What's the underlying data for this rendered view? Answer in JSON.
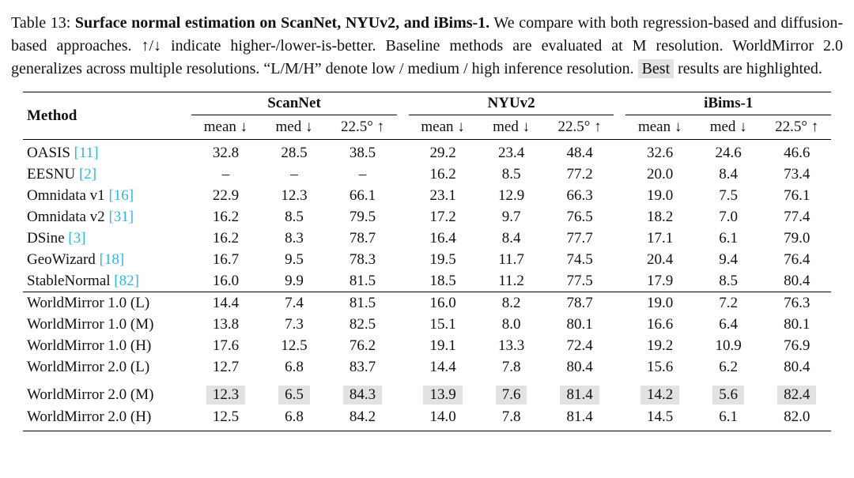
{
  "caption": {
    "prefix": "Table 13: ",
    "title_bold": "Surface normal estimation on ScanNet, NYUv2, and iBims-1.",
    "body": " We compare with both regression-based and diffusion-based approaches. ↑/↓ indicate higher-/lower-is-better. Baseline methods are evaluated at M resolution. WorldMirror 2.0 generalizes across multiple resolutions. “L/M/H” denote low / medium / high inference resolution. ",
    "highlight_word": "Best",
    "suffix": " results are highlighted."
  },
  "table": {
    "method_header": "Method",
    "groups": [
      "ScanNet",
      "NYUv2",
      "iBims-1"
    ],
    "subheaders": [
      "mean ↓",
      "med ↓",
      "22.5° ↑"
    ],
    "colors": {
      "citation": "#31b5e6",
      "highlight_bg": "#e2e2e2"
    },
    "rows": [
      {
        "method": "OASIS",
        "cite": "[11]",
        "values": [
          "32.8",
          "28.5",
          "38.5",
          "29.2",
          "23.4",
          "48.4",
          "32.6",
          "24.6",
          "46.6"
        ]
      },
      {
        "method": "EESNU",
        "cite": "[2]",
        "values": [
          "–",
          "–",
          "–",
          "16.2",
          "8.5",
          "77.2",
          "20.0",
          "8.4",
          "73.4"
        ]
      },
      {
        "method": "Omnidata v1",
        "cite": "[16]",
        "values": [
          "22.9",
          "12.3",
          "66.1",
          "23.1",
          "12.9",
          "66.3",
          "19.0",
          "7.5",
          "76.1"
        ]
      },
      {
        "method": "Omnidata v2",
        "cite": "[31]",
        "values": [
          "16.2",
          "8.5",
          "79.5",
          "17.2",
          "9.7",
          "76.5",
          "18.2",
          "7.0",
          "77.4"
        ]
      },
      {
        "method": "DSine",
        "cite": "[3]",
        "values": [
          "16.2",
          "8.3",
          "78.7",
          "16.4",
          "8.4",
          "77.7",
          "17.1",
          "6.1",
          "79.0"
        ]
      },
      {
        "method": "GeoWizard",
        "cite": "[18]",
        "values": [
          "16.7",
          "9.5",
          "78.3",
          "19.5",
          "11.7",
          "74.5",
          "20.4",
          "9.4",
          "76.4"
        ]
      },
      {
        "method": "StableNormal",
        "cite": "[82]",
        "values": [
          "16.0",
          "9.9",
          "81.5",
          "18.5",
          "11.2",
          "77.5",
          "17.9",
          "8.5",
          "80.4"
        ],
        "rule_below": true
      },
      {
        "method": "WorldMirror 1.0 (L)",
        "values": [
          "14.4",
          "7.4",
          "81.5",
          "16.0",
          "8.2",
          "78.7",
          "19.0",
          "7.2",
          "76.3"
        ]
      },
      {
        "method": "WorldMirror 1.0 (M)",
        "values": [
          "13.8",
          "7.3",
          "82.5",
          "15.1",
          "8.0",
          "80.1",
          "16.6",
          "6.4",
          "80.1"
        ]
      },
      {
        "method": "WorldMirror 1.0 (H)",
        "values": [
          "17.6",
          "12.5",
          "76.2",
          "19.1",
          "13.3",
          "72.4",
          "19.2",
          "10.9",
          "76.9"
        ]
      },
      {
        "method": "WorldMirror 2.0 (L)",
        "values": [
          "12.7",
          "6.8",
          "83.7",
          "14.4",
          "7.8",
          "80.4",
          "15.6",
          "6.2",
          "80.4"
        ]
      },
      {
        "method": "WorldMirror 2.0 (M)",
        "values": [
          "12.3",
          "6.5",
          "84.3",
          "13.9",
          "7.6",
          "81.4",
          "14.2",
          "5.6",
          "82.4"
        ],
        "highlight": true,
        "spacer_above": true
      },
      {
        "method": "WorldMirror 2.0 (H)",
        "values": [
          "12.5",
          "6.8",
          "84.2",
          "14.0",
          "7.8",
          "81.4",
          "14.5",
          "6.1",
          "82.0"
        ]
      }
    ]
  }
}
